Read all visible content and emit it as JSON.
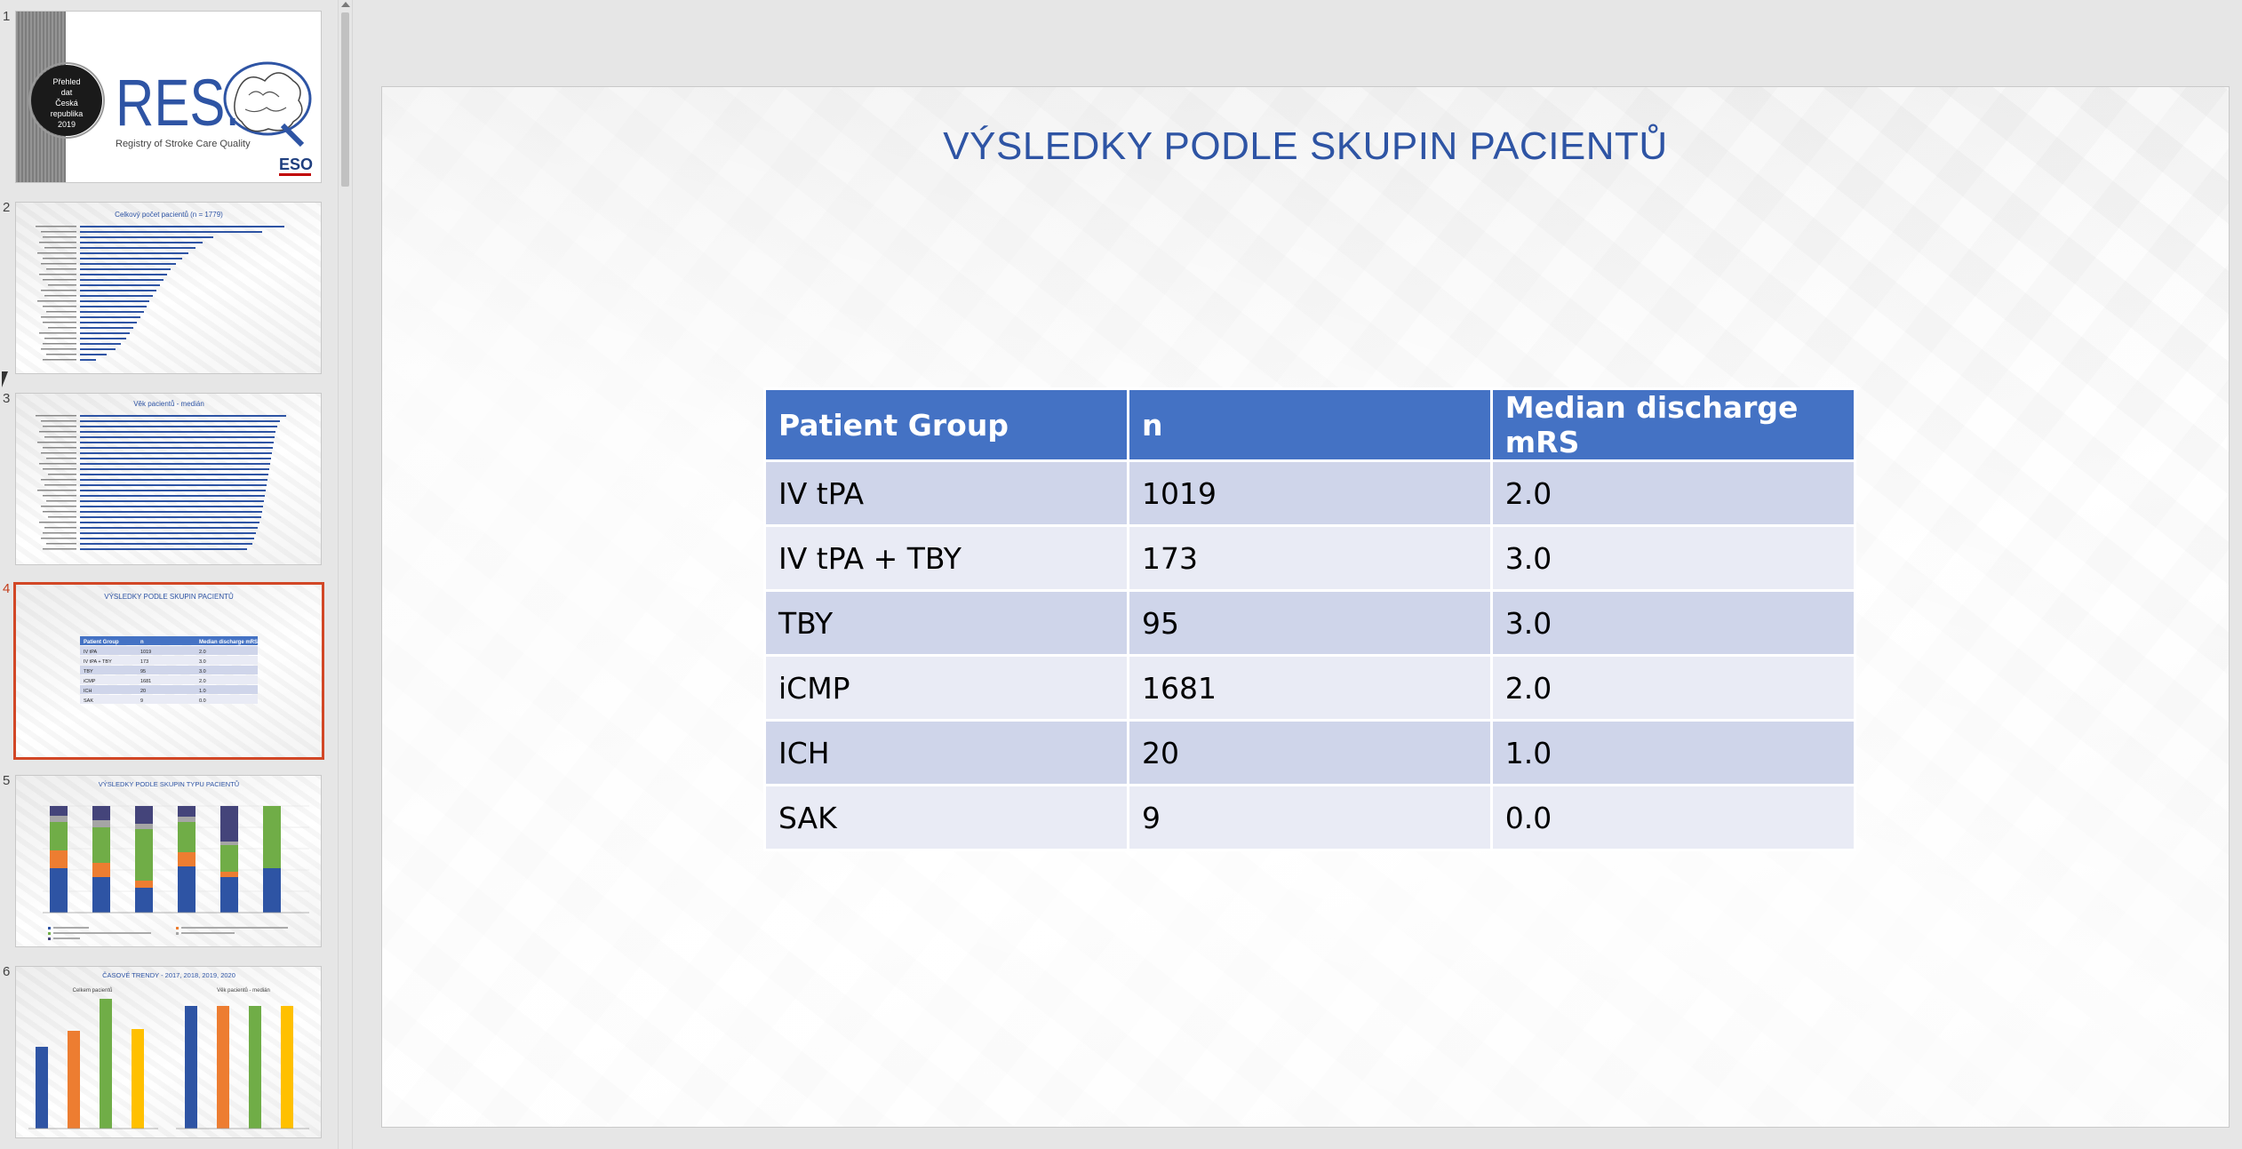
{
  "slide": {
    "title": "VÝSLEDKY PODLE SKUPIN PACIENTŮ",
    "table": {
      "headers": [
        "Patient Group",
        "n",
        "Median discharge mRS"
      ],
      "rows": [
        [
          "IV tPA",
          "1019",
          "2.0"
        ],
        [
          "IV tPA + TBY",
          "173",
          "3.0"
        ],
        [
          "TBY",
          "95",
          "3.0"
        ],
        [
          "iCMP",
          "1681",
          "2.0"
        ],
        [
          "ICH",
          "20",
          "1.0"
        ],
        [
          "SAK",
          "9",
          "0.0"
        ]
      ]
    }
  },
  "thumbnails": [
    {
      "number": "1",
      "logo_text": "RES.Q",
      "subtitle": "Registry of Stroke Care Quality",
      "badge_text": "Přehled dat Česká republika 2019",
      "org": "ESO"
    },
    {
      "number": "2",
      "title": "Celkový počet pacientů (n = 1779)"
    },
    {
      "number": "3",
      "title": "Věk pacientů - medián"
    },
    {
      "number": "4",
      "title": "VÝSLEDKY PODLE SKUPIN PACIENTŮ",
      "selected": true
    },
    {
      "number": "5",
      "title": "VÝSLEDKY PODLE SKUPIN TYPU PACIENTŮ"
    },
    {
      "number": "6",
      "title": "ČASOVÉ TRENDY - 2017, 2018, 2019, 2020",
      "left_title": "Celkem pacientů",
      "right_title": "Věk pacientů - medián"
    }
  ],
  "colors": {
    "accent": "#4472c4",
    "title": "#2e54a4",
    "row_dark": "#cfd5ea",
    "row_light": "#e9ebf5",
    "selection": "#d24726"
  }
}
